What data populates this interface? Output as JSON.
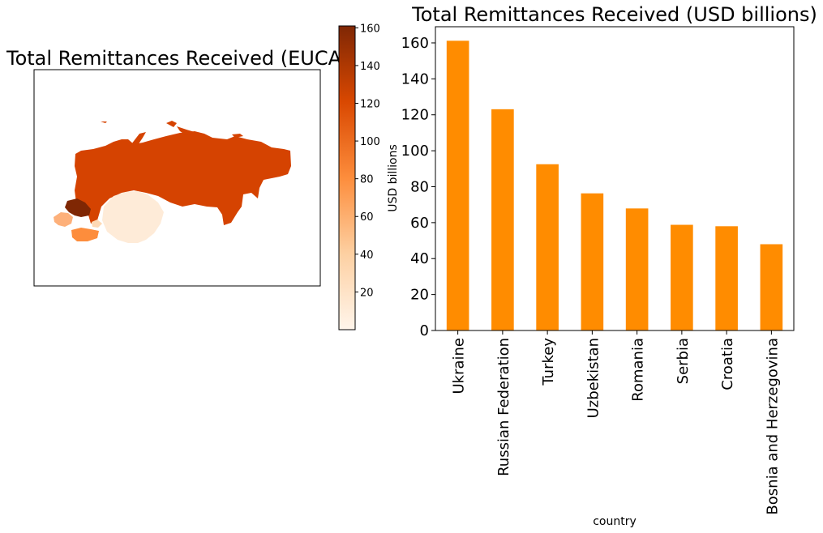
{
  "figure": {
    "map": {
      "title": "Total Remittances Received (EUCA",
      "colorbar": {
        "label": "USD billions",
        "range": [
          0,
          161
        ],
        "ticks": [
          20,
          40,
          60,
          80,
          100,
          120,
          140,
          160
        ],
        "colormap": [
          "#fff5eb",
          "#fdd0a2",
          "#fd8d3c",
          "#d94801",
          "#7f2704"
        ]
      },
      "region_colors": {
        "russian-federation": "#d54301",
        "ukraine": "#7f2704",
        "kazakhstan-and-central-asia": "#feebd8",
        "turkey": "#fd8d3c",
        "balkans": "#fdb07a",
        "caucasus": "#fdd9b5"
      }
    }
  },
  "chart_data": [
    {
      "type": "bar",
      "title": "Total Remittances Received (USD billions)",
      "xlabel": "country",
      "ylabel": "",
      "categories": [
        "Ukraine",
        "Russian Federation",
        "Turkey",
        "Uzbekistan",
        "Romania",
        "Serbia",
        "Croatia",
        "Bosnia and Herzegovina"
      ],
      "values": [
        161.2,
        123.1,
        92.5,
        76.3,
        67.9,
        58.8,
        58.0,
        48.0
      ],
      "ylim": [
        0,
        169
      ],
      "yticks": [
        0,
        20,
        40,
        60,
        80,
        100,
        120,
        140,
        160
      ],
      "bar_color": "#ff8c00",
      "grid": false
    }
  ]
}
